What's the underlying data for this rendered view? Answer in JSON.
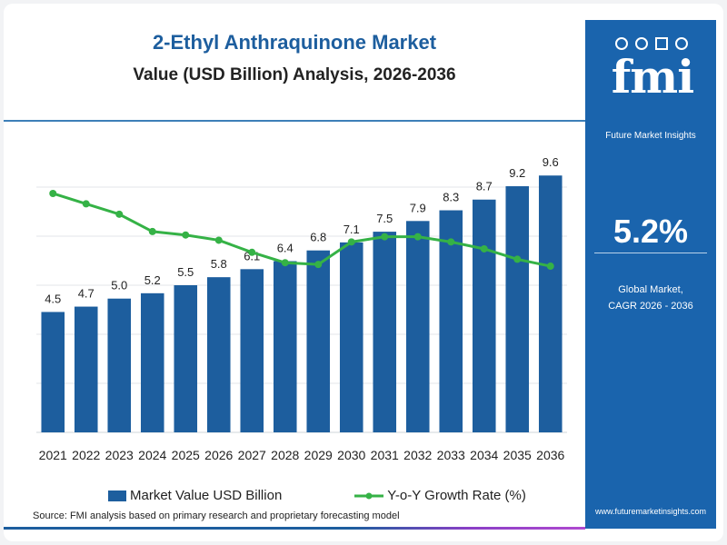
{
  "title": "2-Ethyl Anthraquinone Market",
  "subtitle": "Value (USD Billion) Analysis, 2026-2036",
  "chart_data": {
    "type": "bar",
    "categories": [
      "2021",
      "2022",
      "2023",
      "2024",
      "2025",
      "2026",
      "2027",
      "2028",
      "2029",
      "2030",
      "2031",
      "2032",
      "2033",
      "2034",
      "2035",
      "2036"
    ],
    "series": [
      {
        "name": "Market Value USD Billion",
        "type": "bar",
        "values": [
          4.5,
          4.7,
          5.0,
          5.2,
          5.5,
          5.8,
          6.1,
          6.4,
          6.8,
          7.1,
          7.5,
          7.9,
          8.3,
          8.7,
          9.2,
          9.6
        ],
        "labels": [
          "4.5",
          "4.7",
          "5.0",
          "5.2",
          "5.5",
          "5.8",
          "6.1",
          "6.4",
          "6.8",
          "7.1",
          "7.5",
          "7.9",
          "8.3",
          "8.7",
          "9.2",
          "9.6"
        ],
        "color": "#1d5e9e"
      },
      {
        "name": "Y-o-Y Growth Rate (%)",
        "type": "line",
        "values": [
          6.9,
          6.6,
          6.3,
          5.8,
          5.7,
          5.55,
          5.2,
          4.9,
          4.85,
          5.5,
          5.65,
          5.65,
          5.5,
          5.3,
          5.0,
          4.8
        ],
        "color": "#35b246"
      }
    ],
    "ylim": [
      0,
      11
    ],
    "line_ylim": [
      0,
      8.5
    ],
    "grid": true,
    "legend": "bottom"
  },
  "legend": {
    "bar_label": "Market Value USD Billion",
    "line_label": "Y-o-Y Growth Rate (%)"
  },
  "source": "Source: FMI analysis based on primary research and proprietary forecasting model",
  "panel": {
    "logo": "fmi",
    "brand": "Future Market Insights",
    "cagr_value": "5.2%",
    "cagr_label_1": "Global Market,",
    "cagr_label_2": "CAGR 2026 - 2036",
    "website": "www.futuremarketinsights.com",
    "bg_color": "#1a64ad"
  }
}
